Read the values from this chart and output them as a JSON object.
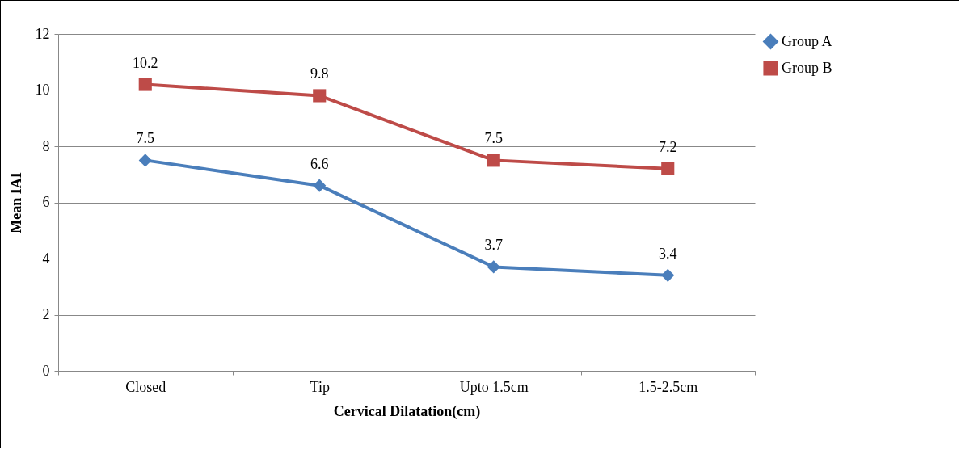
{
  "chart_data": {
    "type": "line",
    "xlabel": "Cervical Dilatation(cm)",
    "ylabel": "Mean IAI",
    "categories": [
      "Closed",
      "Tip",
      "Upto 1.5cm",
      "1.5-2.5cm"
    ],
    "series": [
      {
        "name": "Group A",
        "color": "#4a7ebb",
        "marker": "diamond",
        "values": [
          7.5,
          6.6,
          3.7,
          3.4
        ]
      },
      {
        "name": "Group B",
        "color": "#be4b48",
        "marker": "square",
        "values": [
          10.2,
          9.8,
          7.5,
          7.2
        ]
      }
    ],
    "ylim": [
      0,
      12
    ],
    "yticks": [
      0,
      2,
      4,
      6,
      8,
      10,
      12
    ],
    "grid": "y",
    "legend": "right",
    "data_labels": true,
    "line_style": "solid"
  }
}
